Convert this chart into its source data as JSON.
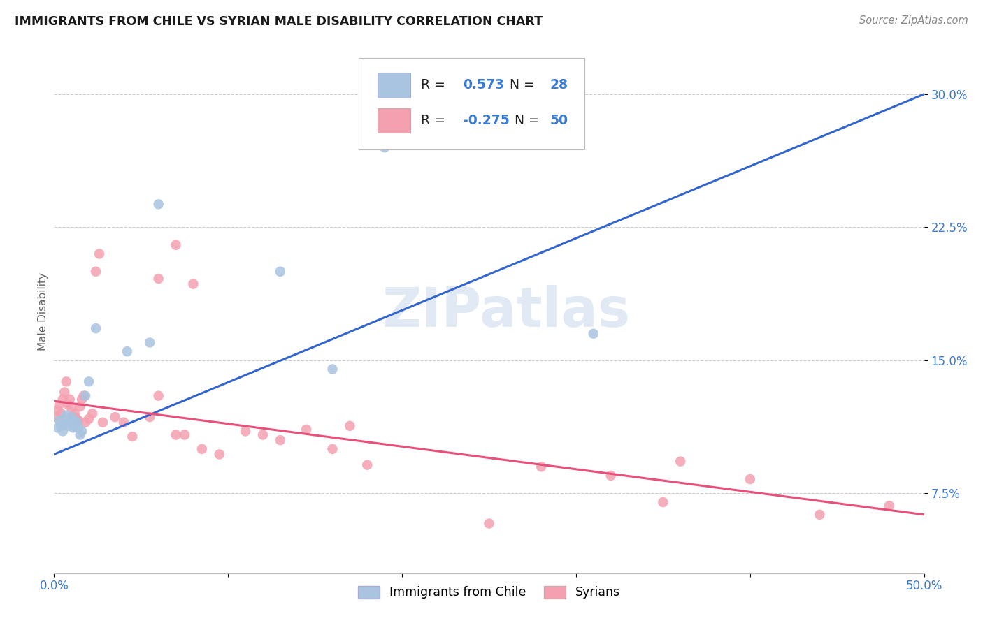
{
  "title": "IMMIGRANTS FROM CHILE VS SYRIAN MALE DISABILITY CORRELATION CHART",
  "source": "Source: ZipAtlas.com",
  "ylabel_label": "Male Disability",
  "xlim": [
    0.0,
    0.5
  ],
  "ylim": [
    0.03,
    0.325
  ],
  "grid_color": "#cccccc",
  "background_color": "#ffffff",
  "watermark_text": "ZIPatlas",
  "blue_R": "0.573",
  "blue_N": "28",
  "pink_R": "-0.275",
  "pink_N": "50",
  "blue_color": "#a8c4e0",
  "pink_color": "#f4a0b0",
  "blue_line_color": "#3366cc",
  "pink_line_color": "#e8507a",
  "blue_line_x0": 0.0,
  "blue_line_y0": 0.097,
  "blue_line_x1": 0.5,
  "blue_line_y1": 0.3,
  "pink_line_x0": 0.0,
  "pink_line_y0": 0.127,
  "pink_line_x1": 0.5,
  "pink_line_y1": 0.063,
  "blue_x": [
    0.002,
    0.003,
    0.004,
    0.005,
    0.006,
    0.006,
    0.007,
    0.008,
    0.009,
    0.01,
    0.011,
    0.012,
    0.012,
    0.013,
    0.014,
    0.015,
    0.016,
    0.018,
    0.02,
    0.024,
    0.042,
    0.055,
    0.13,
    0.16,
    0.19,
    0.3,
    0.31,
    0.06
  ],
  "blue_y": [
    0.112,
    0.116,
    0.113,
    0.11,
    0.114,
    0.117,
    0.119,
    0.113,
    0.116,
    0.118,
    0.112,
    0.116,
    0.113,
    0.115,
    0.112,
    0.108,
    0.11,
    0.13,
    0.138,
    0.168,
    0.155,
    0.16,
    0.2,
    0.145,
    0.27,
    0.3,
    0.165,
    0.238
  ],
  "pink_x": [
    0.001,
    0.002,
    0.003,
    0.004,
    0.005,
    0.006,
    0.007,
    0.008,
    0.009,
    0.01,
    0.011,
    0.012,
    0.013,
    0.014,
    0.015,
    0.016,
    0.017,
    0.018,
    0.02,
    0.022,
    0.024,
    0.026,
    0.028,
    0.035,
    0.04,
    0.045,
    0.055,
    0.07,
    0.085,
    0.095,
    0.11,
    0.13,
    0.145,
    0.16,
    0.17,
    0.06,
    0.07,
    0.08,
    0.28,
    0.32,
    0.36,
    0.4,
    0.44,
    0.48,
    0.06,
    0.075,
    0.12,
    0.18,
    0.25,
    0.35
  ],
  "pink_y": [
    0.118,
    0.122,
    0.125,
    0.12,
    0.128,
    0.132,
    0.138,
    0.125,
    0.128,
    0.123,
    0.118,
    0.12,
    0.117,
    0.116,
    0.124,
    0.128,
    0.13,
    0.115,
    0.117,
    0.12,
    0.2,
    0.21,
    0.115,
    0.118,
    0.115,
    0.107,
    0.118,
    0.108,
    0.1,
    0.097,
    0.11,
    0.105,
    0.111,
    0.1,
    0.113,
    0.196,
    0.215,
    0.193,
    0.09,
    0.085,
    0.093,
    0.083,
    0.063,
    0.068,
    0.13,
    0.108,
    0.108,
    0.091,
    0.058,
    0.07
  ]
}
